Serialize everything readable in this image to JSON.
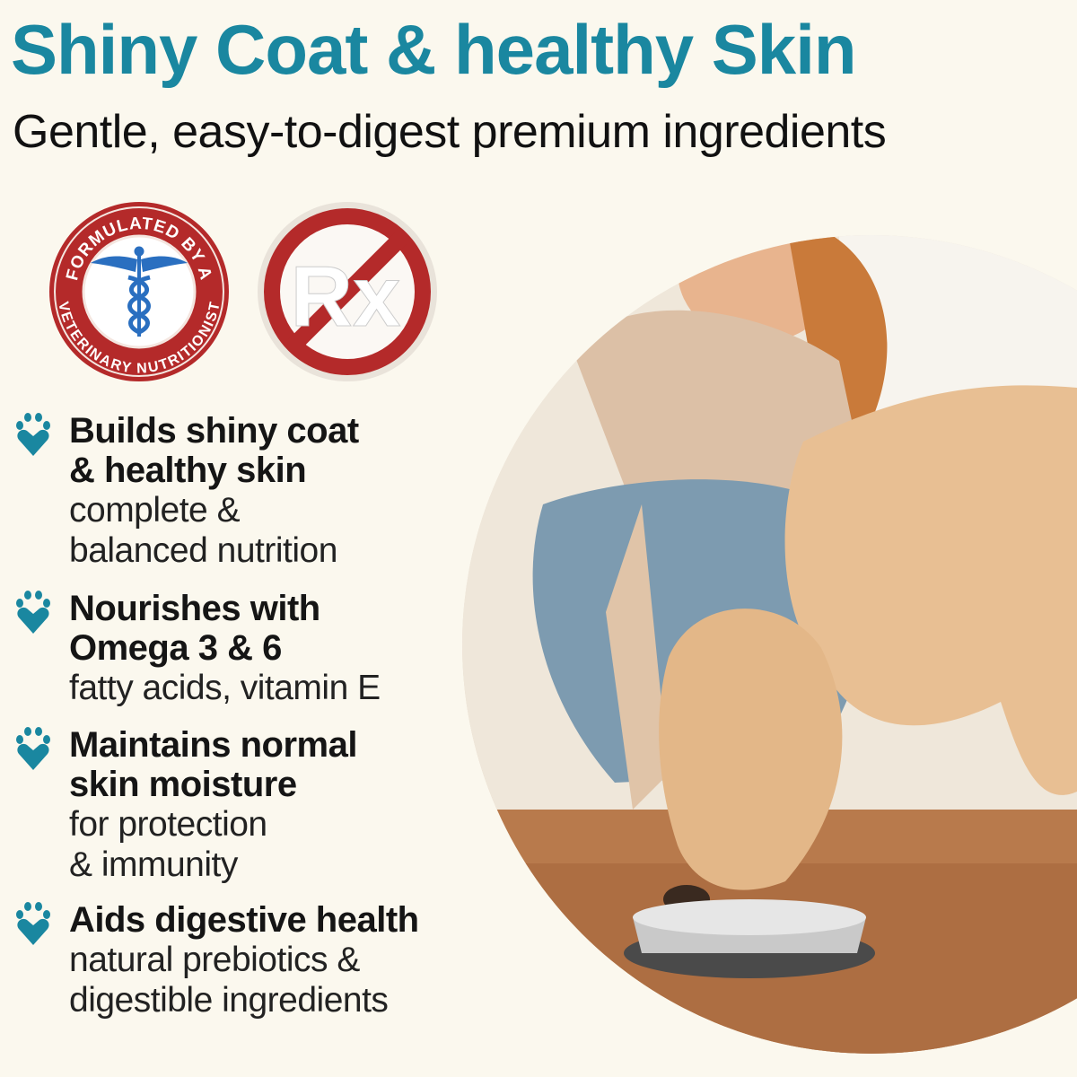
{
  "header": {
    "title": "Shiny Coat & healthy Skin",
    "subtitle": "Gentle, easy-to-digest premium ingredients"
  },
  "badges": {
    "vet_seal": {
      "top_text": "FORMULATED BY A",
      "bottom_text": "VETERINARY NUTRITIONIST",
      "icon": "caduceus-icon"
    },
    "no_rx": {
      "text": "Rx",
      "icon": "no-prescription-icon"
    }
  },
  "benefits": [
    {
      "heading": [
        "Builds shiny coat",
        "& healthy skin"
      ],
      "detail": [
        "complete &",
        "balanced nutrition"
      ],
      "icon": "paw-heart-icon"
    },
    {
      "heading": [
        "Nourishes with",
        "Omega 3 & 6"
      ],
      "detail": [
        "fatty acids, vitamin E"
      ],
      "icon": "paw-heart-icon"
    },
    {
      "heading": [
        "Maintains normal",
        "skin moisture"
      ],
      "detail": [
        "for protection",
        "& immunity"
      ],
      "icon": "paw-heart-icon"
    },
    {
      "heading": [
        "Aids digestive health"
      ],
      "detail": [
        "natural prebiotics &",
        "digestible ingredients"
      ],
      "icon": "paw-heart-icon"
    }
  ],
  "colors": {
    "background": "#fbf8ee",
    "title": "#1a87a0",
    "badge_red": "#b42a2a",
    "caduceus_blue": "#2a6fc0",
    "paw": "#1a87a0"
  }
}
